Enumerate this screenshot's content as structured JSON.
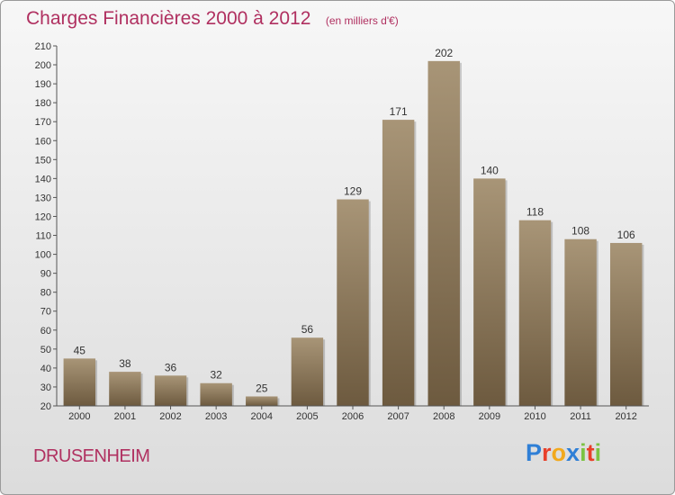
{
  "title": "Charges Financières 2000 à 2012",
  "subtitle": "(en milliers d'€)",
  "town": "DRUSENHEIM",
  "logo": {
    "letters": [
      "P",
      "r",
      "o",
      "x",
      "i",
      "t",
      "i"
    ],
    "colors": [
      "#2f7fd6",
      "#e8402a",
      "#f2a91d",
      "#2f7fd6",
      "#7cc242",
      "#e8402a",
      "#7cc242"
    ]
  },
  "colors": {
    "bar_top": "#a89577",
    "bar_bottom": "#6d5a3f",
    "title": "#b03060"
  },
  "chart_data": {
    "type": "bar",
    "categories": [
      "2000",
      "2001",
      "2002",
      "2003",
      "2004",
      "2005",
      "2006",
      "2007",
      "2008",
      "2009",
      "2010",
      "2011",
      "2012"
    ],
    "values": [
      45,
      38,
      36,
      32,
      25,
      56,
      129,
      171,
      202,
      140,
      118,
      108,
      106
    ],
    "ylim": [
      20,
      210
    ],
    "yticks": [
      20,
      30,
      40,
      50,
      60,
      70,
      80,
      90,
      100,
      110,
      120,
      130,
      140,
      150,
      160,
      170,
      180,
      190,
      200,
      210
    ],
    "grid": false,
    "data_labels": true
  }
}
